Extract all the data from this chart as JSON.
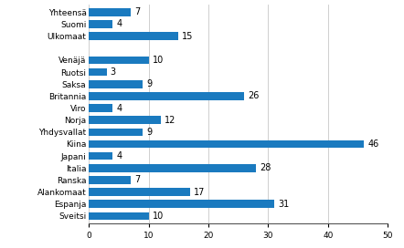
{
  "categories": [
    "Sveitsi",
    "Espanja",
    "Alankomaat",
    "Ranska",
    "Italia",
    "Japani",
    "Kiina",
    "Yhdysvallat",
    "Norja",
    "Viro",
    "Britannia",
    "Saksa",
    "Ruotsi",
    "Venäjä",
    "",
    "Ulkomaat",
    "Suomi",
    "Yhteensä"
  ],
  "values": [
    10,
    31,
    17,
    7,
    28,
    4,
    46,
    9,
    12,
    4,
    26,
    9,
    3,
    10,
    0,
    15,
    4,
    7
  ],
  "bar_color": "#1a7abf",
  "xlim": [
    0,
    50
  ],
  "xticks": [
    0,
    10,
    20,
    30,
    40,
    50
  ],
  "background_color": "#ffffff",
  "grid_color": "#c8c8c8",
  "bar_height": 0.65,
  "fontsize": 6.5,
  "label_fontsize": 7
}
